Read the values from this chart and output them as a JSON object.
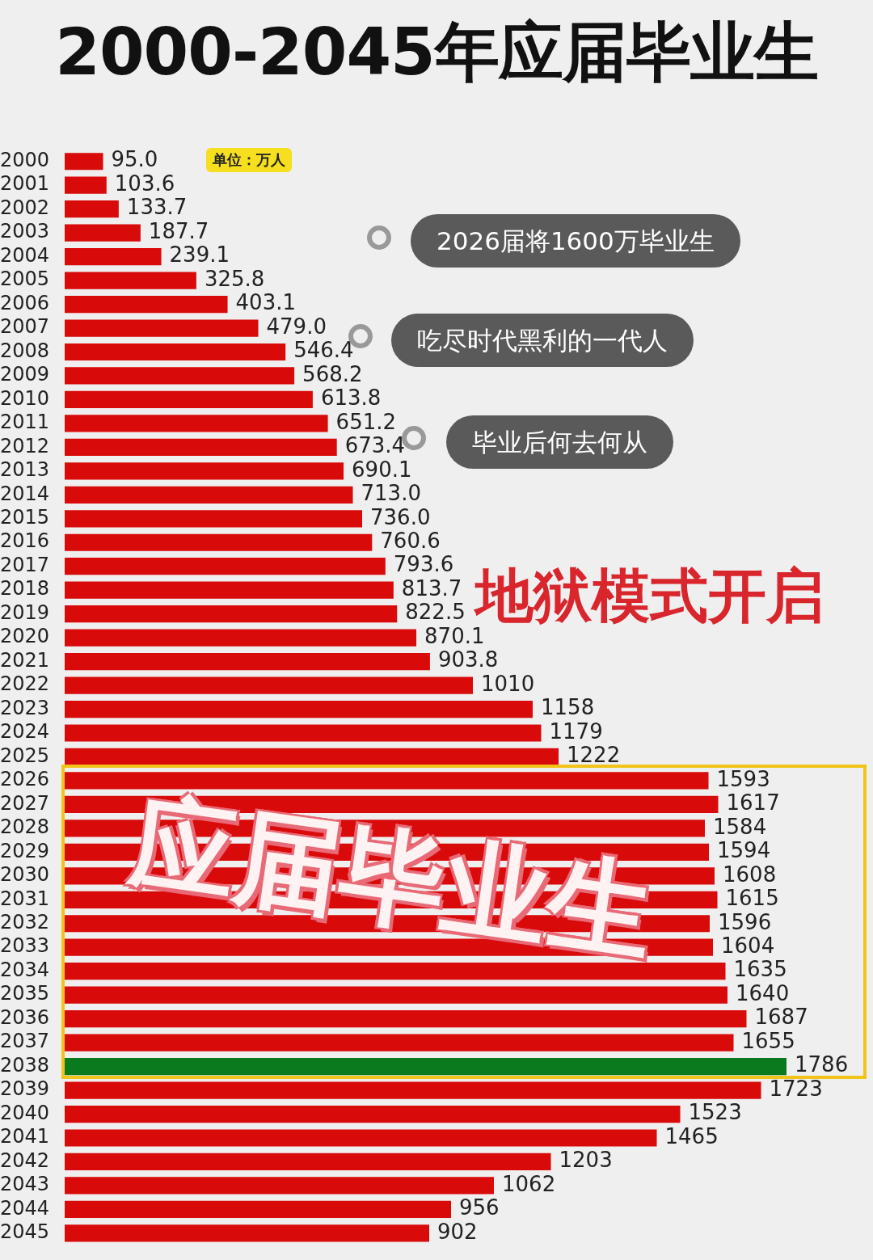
{
  "chart_data": {
    "type": "bar",
    "orientation": "horizontal",
    "title": "2000-2045年应届毕业生",
    "categories": [
      "2000",
      "2001",
      "2002",
      "2003",
      "2004",
      "2005",
      "2006",
      "2007",
      "2008",
      "2009",
      "2010",
      "2011",
      "2012",
      "2013",
      "2014",
      "2015",
      "2016",
      "2017",
      "2018",
      "2019",
      "2020",
      "2021",
      "2022",
      "2023",
      "2024",
      "2025",
      "2026",
      "2027",
      "2028",
      "2029",
      "2030",
      "2031",
      "2032",
      "2033",
      "2034",
      "2035",
      "2036",
      "2037",
      "2038",
      "2039",
      "2040",
      "2041",
      "2042",
      "2043",
      "2044",
      "2045"
    ],
    "values": [
      95.0,
      103.6,
      133.7,
      187.7,
      239.1,
      325.8,
      403.1,
      479.0,
      546.4,
      568.2,
      613.8,
      651.2,
      673.4,
      690.1,
      713.0,
      736.0,
      760.6,
      793.6,
      813.7,
      822.5,
      870.1,
      903.8,
      1010,
      1158,
      1179,
      1222,
      1593,
      1617,
      1584,
      1594,
      1608,
      1615,
      1596,
      1604,
      1635,
      1640,
      1687,
      1655,
      1786,
      1723,
      1523,
      1465,
      1203,
      1062,
      956,
      902
    ],
    "value_labels": [
      "95.0",
      "103.6",
      "133.7",
      "187.7",
      "239.1",
      "325.8",
      "403.1",
      "479.0",
      "546.4",
      "568.2",
      "613.8",
      "651.2",
      "673.4",
      "690.1",
      "713.0",
      "736.0",
      "760.6",
      "793.6",
      "813.7",
      "822.5",
      "870.1",
      "903.8",
      "1010",
      "1158",
      "1179",
      "1222",
      "1593",
      "1617",
      "1584",
      "1594",
      "1608",
      "1615",
      "1596",
      "1604",
      "1635",
      "1640",
      "1687",
      "1655",
      "1786",
      "1723",
      "1523",
      "1465",
      "1203",
      "1062",
      "956",
      "902"
    ],
    "colors": [
      "#d90a0a",
      "#d90a0a",
      "#d90a0a",
      "#d90a0a",
      "#d90a0a",
      "#d90a0a",
      "#d90a0a",
      "#d90a0a",
      "#d90a0a",
      "#d90a0a",
      "#d90a0a",
      "#d90a0a",
      "#d90a0a",
      "#d90a0a",
      "#d90a0a",
      "#d90a0a",
      "#d90a0a",
      "#d90a0a",
      "#d90a0a",
      "#d90a0a",
      "#d90a0a",
      "#d90a0a",
      "#d90a0a",
      "#d90a0a",
      "#d90a0a",
      "#d90a0a",
      "#d90a0a",
      "#d90a0a",
      "#d90a0a",
      "#d90a0a",
      "#d90a0a",
      "#d90a0a",
      "#d90a0a",
      "#d90a0a",
      "#d90a0a",
      "#d90a0a",
      "#d90a0a",
      "#d90a0a",
      "#0b7a1e",
      "#d90a0a",
      "#d90a0a",
      "#d90a0a",
      "#d90a0a",
      "#d90a0a",
      "#d90a0a",
      "#d90a0a"
    ],
    "annotations": [
      "单位：万人",
      "2026届将1600万毕业生",
      "吃尽时代黑利的一代人",
      "毕业后何去何从",
      "地狱模式开启",
      "应届毕业生"
    ]
  }
}
